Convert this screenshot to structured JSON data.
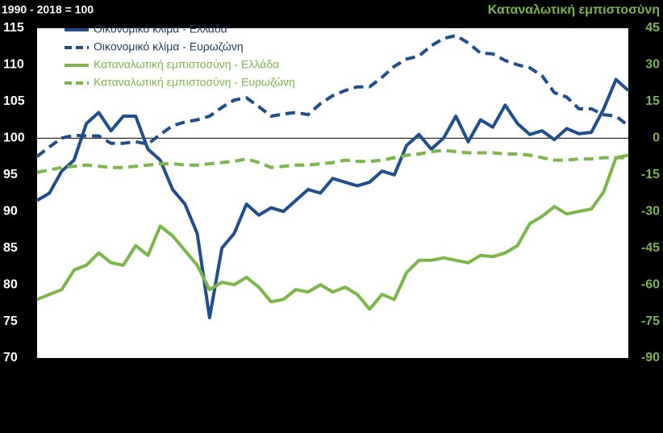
{
  "chart_data": {
    "type": "line",
    "title": "1990 - 2018 = 100",
    "y2_title": "Καταναλωτική εμπιστοσύνη",
    "categories": [
      null,
      null,
      null,
      null,
      null,
      null,
      null,
      null,
      null,
      null,
      null,
      null,
      null,
      null,
      null,
      null,
      null,
      null,
      null,
      null,
      null,
      null,
      null,
      null,
      null,
      null,
      null,
      null,
      null,
      null,
      null,
      null,
      null,
      null,
      null,
      null,
      null,
      null,
      null,
      null,
      null,
      null,
      null,
      null,
      null,
      null,
      null,
      null,
      null
    ],
    "ylim": [
      70,
      115
    ],
    "yticks": [
      70,
      75,
      80,
      85,
      90,
      95,
      100,
      105,
      110,
      115
    ],
    "y2lim": [
      -90,
      45
    ],
    "y2ticks": [
      -90,
      -75,
      -60,
      -45,
      -30,
      -15,
      0,
      15,
      30,
      45
    ],
    "reference_line": 100,
    "legend": "top-left",
    "series": [
      {
        "name": "Οικονομικό κλίμα - Ελλάδα",
        "color": "#1f4e8c",
        "dash": false,
        "values": [
          91.5,
          92.5,
          95.5,
          97,
          102,
          103.5,
          101,
          103,
          103,
          98.5,
          97,
          93,
          91,
          87,
          75.5,
          85,
          87,
          91,
          89.5,
          90.5,
          90,
          91.5,
          93,
          92.5,
          94.5,
          94,
          93.5,
          94,
          95.5,
          95,
          99,
          100.5,
          98.5,
          100,
          103,
          99.5,
          102.5,
          101.5,
          104.5,
          102,
          100.5,
          101,
          99.8,
          101.3,
          100.6,
          100.8,
          104,
          108,
          106.5
        ]
      },
      {
        "name": "Οικονομικό κλίμα - Ευρωζώνη",
        "color": "#1f4e8c",
        "dash": true,
        "values": [
          97.5,
          98.8,
          100,
          100.4,
          100.3,
          100.3,
          99.3,
          99.3,
          99.5,
          99.2,
          100.5,
          101.7,
          102.2,
          102.5,
          103,
          104.2,
          105.2,
          105.5,
          104.3,
          103,
          103.3,
          103.5,
          103.2,
          104.7,
          105.8,
          106.5,
          107,
          107,
          108.3,
          109.8,
          110.8,
          111.2,
          112.6,
          113.6,
          114,
          113,
          111.6,
          111.5,
          110.6,
          110,
          109.6,
          108.5,
          106.2,
          105.6,
          104,
          104,
          103.2,
          103,
          101.7
        ]
      },
      {
        "name": "Καταναλωτική εμπιστοσύνη - Ελλάδα",
        "color": "#7ab648",
        "dash": false,
        "axis": "y2",
        "values": [
          -66,
          -64,
          -62,
          -54,
          -52,
          -47,
          -51,
          -52,
          -44,
          -48,
          -36,
          -40,
          -46,
          -52,
          -62,
          -59,
          -60,
          -57,
          -61,
          -67,
          -66,
          -62,
          -63,
          -60,
          -63,
          -61,
          -64,
          -70,
          -64,
          -66,
          -55,
          -50,
          -50,
          -49,
          -50,
          -51,
          -48,
          -48.5,
          -47,
          -44,
          -35,
          -32,
          -28,
          -31,
          -30,
          -29,
          -22,
          -8,
          -7
        ]
      },
      {
        "name": "Καταναλωτική εμπιστοσύνη - Ευρωζώνη",
        "color": "#7ab648",
        "dash": true,
        "axis": "y2",
        "values": [
          -14,
          -13,
          -12,
          -11.5,
          -11,
          -11.5,
          -12,
          -12,
          -11.5,
          -11,
          -10.5,
          -10.5,
          -11,
          -11,
          -10.5,
          -10,
          -9.5,
          -8.5,
          -10,
          -12,
          -11.5,
          -11,
          -11,
          -10.5,
          -10,
          -9,
          -9.5,
          -9.5,
          -9,
          -8,
          -7,
          -6.5,
          -5.5,
          -5,
          -5.5,
          -6,
          -6,
          -6,
          -6.5,
          -6.5,
          -7,
          -8,
          -9,
          -9,
          -8.5,
          -8.5,
          -8,
          -8,
          -8
        ]
      }
    ]
  }
}
